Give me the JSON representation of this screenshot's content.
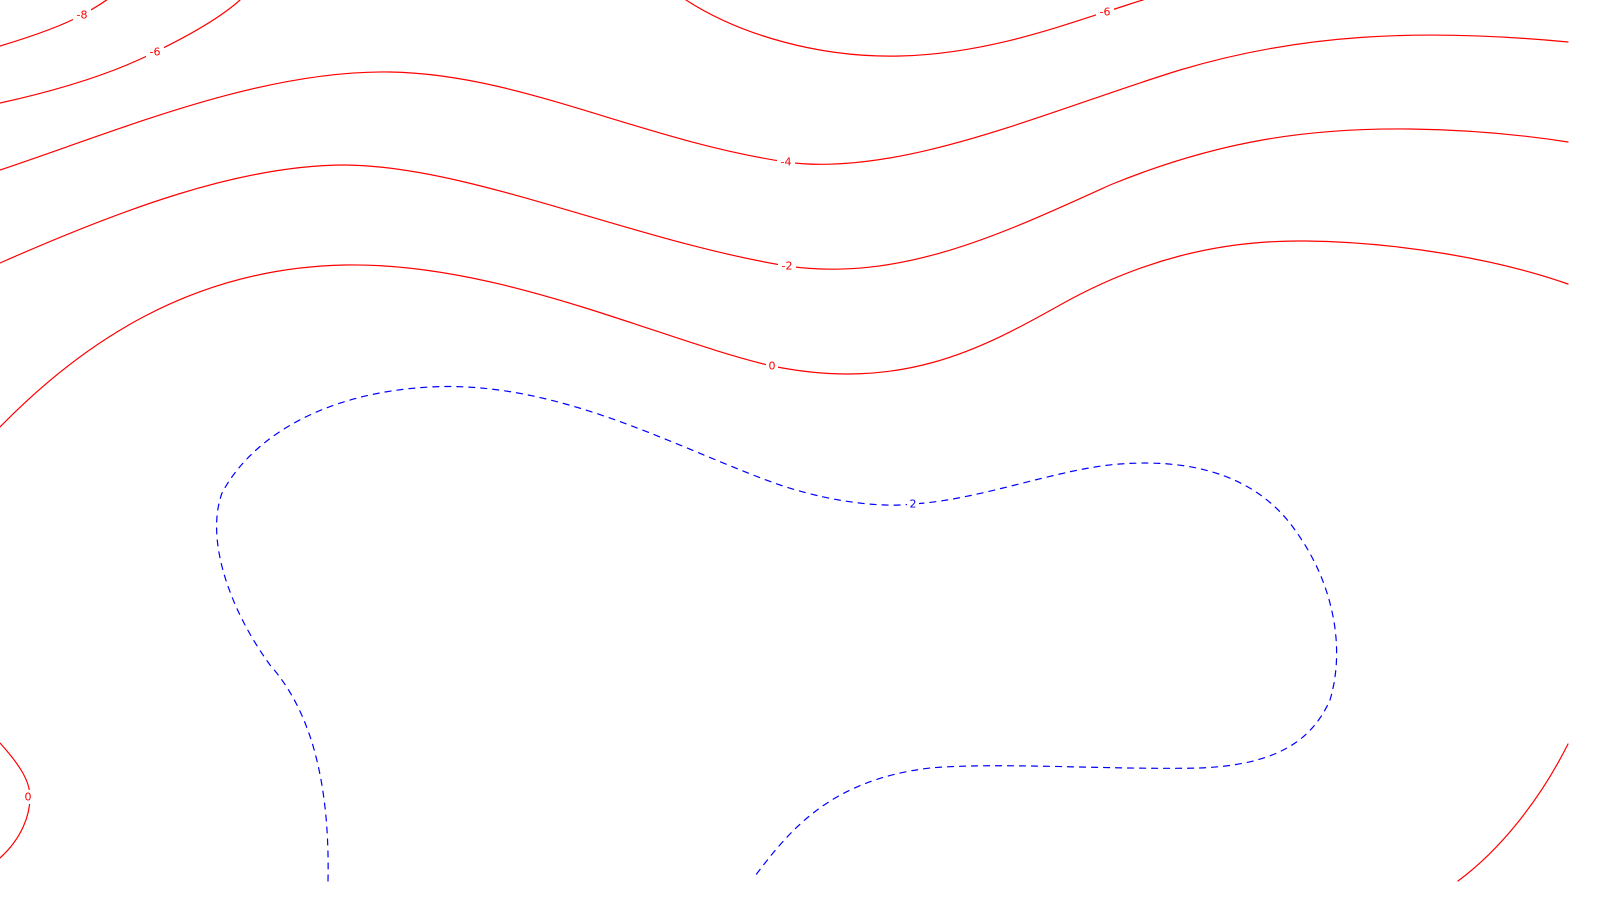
{
  "chart_data": {
    "type": "contour",
    "title": "",
    "xlabel": "",
    "ylabel": "",
    "grid": false,
    "legend": "none",
    "colors": {
      "negative_or_zero": "#ff0000",
      "positive": "#0000ff",
      "background": "#ffffff"
    },
    "line_styles": {
      "negative_or_zero": "solid",
      "positive": "dashed"
    },
    "levels": [
      -8,
      -6,
      -4,
      -2,
      0,
      2
    ],
    "contours": [
      {
        "id": "m8-a",
        "level": -8,
        "label": "-8",
        "style": "solid",
        "color": "#ff0000"
      },
      {
        "id": "m6-a",
        "level": -6,
        "label": "-6",
        "style": "solid",
        "color": "#ff0000"
      },
      {
        "id": "m6-b",
        "level": -6,
        "label": "-6",
        "style": "solid",
        "color": "#ff0000"
      },
      {
        "id": "m4-a",
        "level": -4,
        "label": "-4",
        "style": "solid",
        "color": "#ff0000"
      },
      {
        "id": "m2-a",
        "level": -2,
        "label": "-2",
        "style": "solid",
        "color": "#ff0000"
      },
      {
        "id": "z0-a",
        "level": 0,
        "label": "0",
        "style": "solid",
        "color": "#ff0000"
      },
      {
        "id": "z0-b",
        "level": 0,
        "label": "0",
        "style": "solid",
        "color": "#ff0000"
      },
      {
        "id": "z0-c",
        "level": 0,
        "label": "",
        "style": "solid",
        "color": "#ff0000"
      },
      {
        "id": "p2-a",
        "level": 2,
        "label": "2",
        "style": "dashed",
        "color": "#0000ff"
      }
    ]
  }
}
